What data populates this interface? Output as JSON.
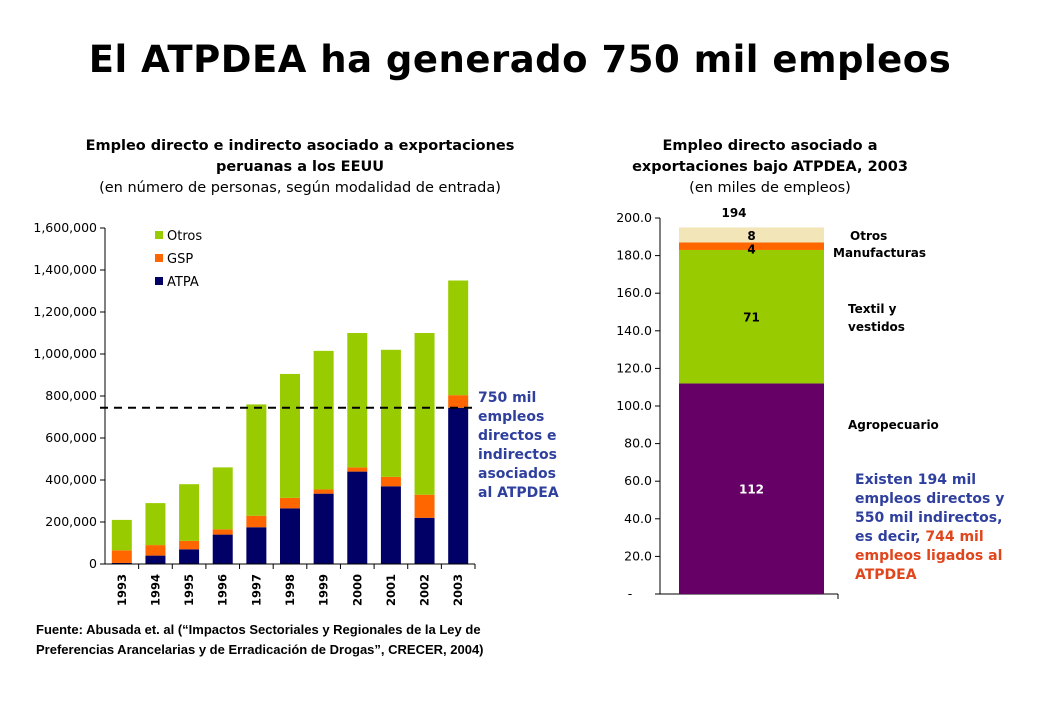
{
  "title": "El ATPDEA ha generado 750 mil empleos",
  "left_chart_title": {
    "line1": "Empleo directo e indirecto asociado a exportaciones",
    "line2": "peruanas a los EEUU",
    "line3": "(en número de personas, según modalidad de entrada)"
  },
  "right_chart_title": {
    "line1": "Empleo directo asociado a",
    "line2": "exportaciones bajo ATPDEA, 2003",
    "line3": "(en miles de empleos)"
  },
  "left_annotation": [
    "750 mil",
    "empleos",
    "directos e",
    "indirectos",
    "asociados",
    "al ATPDEA"
  ],
  "right_note": {
    "line1": "Existen 194 mil",
    "line2": "empleos directos y",
    "line3": "550 mil indirectos,",
    "line4_prefix": "es decir, ",
    "line4_highlight": "744 mil",
    "line5": "empleos ligados al",
    "line6": "ATPDEA"
  },
  "source": {
    "line1": "Fuente: Abusada et. al (“Impactos Sectoriales y Regionales de la Ley de",
    "line2": "Preferencias Arancelarias y de Erradicación de Drogas”, CRECER, 2004)"
  },
  "colors": {
    "otros": "#99cc00",
    "gsp": "#ff6600",
    "atpa": "#000066",
    "agropecuario": "#660066",
    "textil": "#99cc00",
    "manufacturas": "#ff6600",
    "otros_right": "#f2e6b8",
    "blue_text": "#2f3f9e",
    "orange_text": "#e0451b"
  },
  "chart_data": [
    {
      "type": "bar",
      "stacked": true,
      "categories": [
        "1993",
        "1994",
        "1995",
        "1996",
        "1997",
        "1998",
        "1999",
        "2000",
        "2001",
        "2002",
        "2003"
      ],
      "series": [
        {
          "name": "ATPA",
          "values": [
            5000,
            40000,
            70000,
            140000,
            175000,
            265000,
            335000,
            440000,
            370000,
            220000,
            744000
          ]
        },
        {
          "name": "GSP",
          "values": [
            60000,
            50000,
            40000,
            25000,
            55000,
            50000,
            20000,
            20000,
            45000,
            110000,
            60000
          ]
        },
        {
          "name": "Otros",
          "values": [
            145000,
            200000,
            270000,
            295000,
            530000,
            590000,
            660000,
            640000,
            605000,
            770000,
            546000
          ]
        }
      ],
      "ylim": [
        0,
        1600000
      ],
      "yticks": [
        "0",
        "200,000",
        "400,000",
        "600,000",
        "800,000",
        "1,000,000",
        "1,200,000",
        "1,400,000",
        "1,600,000"
      ],
      "reference_line": 744000,
      "legend": "top-left"
    },
    {
      "type": "bar",
      "stacked": true,
      "categories": [
        "2003"
      ],
      "series": [
        {
          "name": "Agropecuario",
          "value": 112,
          "label": "112"
        },
        {
          "name": "Textil y vestidos",
          "value": 71,
          "label": "71"
        },
        {
          "name": "Manufacturas",
          "value": 4,
          "label": "4"
        },
        {
          "name": "Otros",
          "value": 8,
          "label": "8"
        }
      ],
      "total_label": "194",
      "ylim": [
        0,
        200
      ],
      "yticks": [
        "-",
        "20.0",
        "40.0",
        "60.0",
        "80.0",
        "100.0",
        "120.0",
        "140.0",
        "160.0",
        "180.0",
        "200.0"
      ],
      "series_labels": {
        "otros": "Otros",
        "manufacturas": "Manufacturas",
        "textil_1": "Textil y",
        "textil_2": "vestidos",
        "agropecuario": "Agropecuario"
      }
    }
  ]
}
